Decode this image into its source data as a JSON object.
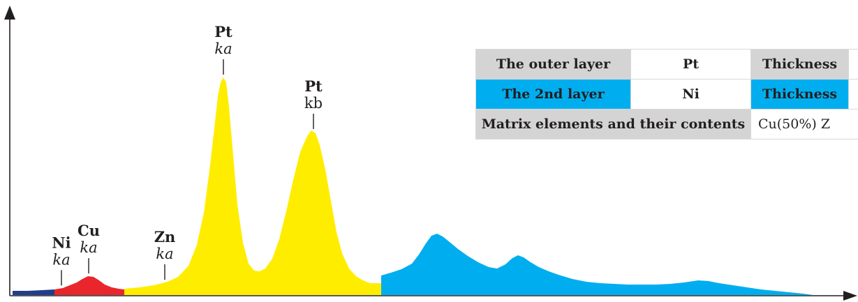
{
  "colors": {
    "navy": "#1f3f8c",
    "red": "#e8262b",
    "yellow": "#ffed00",
    "blue": "#00aeef",
    "gray": "#d4d4d4",
    "axis": "#231f20"
  },
  "chart_data": {
    "type": "area",
    "title": "",
    "xlabel": "",
    "ylabel": "",
    "grid": false,
    "xlim": [
      0,
      1229
    ],
    "ylim": [
      0,
      320
    ],
    "segments": [
      {
        "color_key": "navy",
        "x": [
          18,
          40,
          60,
          78
        ],
        "y": [
          6,
          6,
          7,
          8
        ]
      },
      {
        "color_key": "red",
        "x": [
          78,
          90,
          100,
          110,
          118,
          126,
          134,
          142,
          150,
          160,
          170,
          178
        ],
        "y": [
          8,
          10,
          14,
          18,
          23,
          27,
          26,
          21,
          15,
          11,
          9,
          8
        ]
      },
      {
        "color_key": "yellow",
        "x": [
          178,
          200,
          220,
          240,
          255,
          270,
          282,
          292,
          300,
          306,
          312,
          316,
          320,
          324,
          328,
          334,
          340,
          348,
          356,
          364,
          372,
          380,
          390,
          400,
          410,
          420,
          430,
          440,
          446,
          452,
          458,
          466,
          474,
          482,
          490,
          500,
          510,
          520,
          530,
          546
        ],
        "y": [
          9,
          11,
          14,
          19,
          26,
          42,
          72,
          118,
          178,
          230,
          285,
          305,
          312,
          305,
          270,
          200,
          130,
          75,
          45,
          35,
          34,
          38,
          52,
          80,
          120,
          165,
          205,
          228,
          236,
          232,
          215,
          180,
          135,
          90,
          60,
          38,
          27,
          21,
          17,
          17
        ]
      },
      {
        "color_key": "blue",
        "x": [
          546,
          560,
          575,
          590,
          600,
          610,
          618,
          626,
          634,
          644,
          656,
          670,
          685,
          700,
          712,
          724,
          734,
          742,
          750,
          760,
          772,
          786,
          800,
          820,
          840,
          860,
          880,
          900,
          920,
          940,
          960,
          980,
          1000,
          1015,
          1030,
          1050,
          1070,
          1090,
          1110,
          1130,
          1150,
          1165
        ],
        "y": [
          28,
          32,
          37,
          45,
          58,
          74,
          85,
          88,
          84,
          76,
          66,
          56,
          47,
          40,
          38,
          44,
          53,
          57,
          54,
          47,
          40,
          34,
          29,
          23,
          19,
          17,
          16,
          15,
          15,
          15,
          16,
          18,
          21,
          20,
          17,
          14,
          11,
          8,
          6,
          4,
          2,
          0
        ]
      }
    ],
    "peak_labels": [
      {
        "element": "Ni",
        "line": "ka",
        "italic": true,
        "x": 88
      },
      {
        "element": "Cu",
        "line": "ka",
        "italic": true,
        "x": 127
      },
      {
        "element": "Zn",
        "line": "ka",
        "italic": true,
        "x": 236
      },
      {
        "element": "Pt",
        "line": "ka",
        "italic": true,
        "x": 320
      },
      {
        "element": "Pt",
        "line": "kb",
        "italic": false,
        "x": 449
      }
    ]
  },
  "info_table": {
    "rows": [
      {
        "label": "The outer layer",
        "value": "Pt",
        "field": "Thickness"
      },
      {
        "label": "The 2nd layer",
        "value": "Ni",
        "field": "Thickness"
      }
    ],
    "matrix_label": "Matrix elements and their contents",
    "matrix_value": "Cu(50%)  Z"
  }
}
